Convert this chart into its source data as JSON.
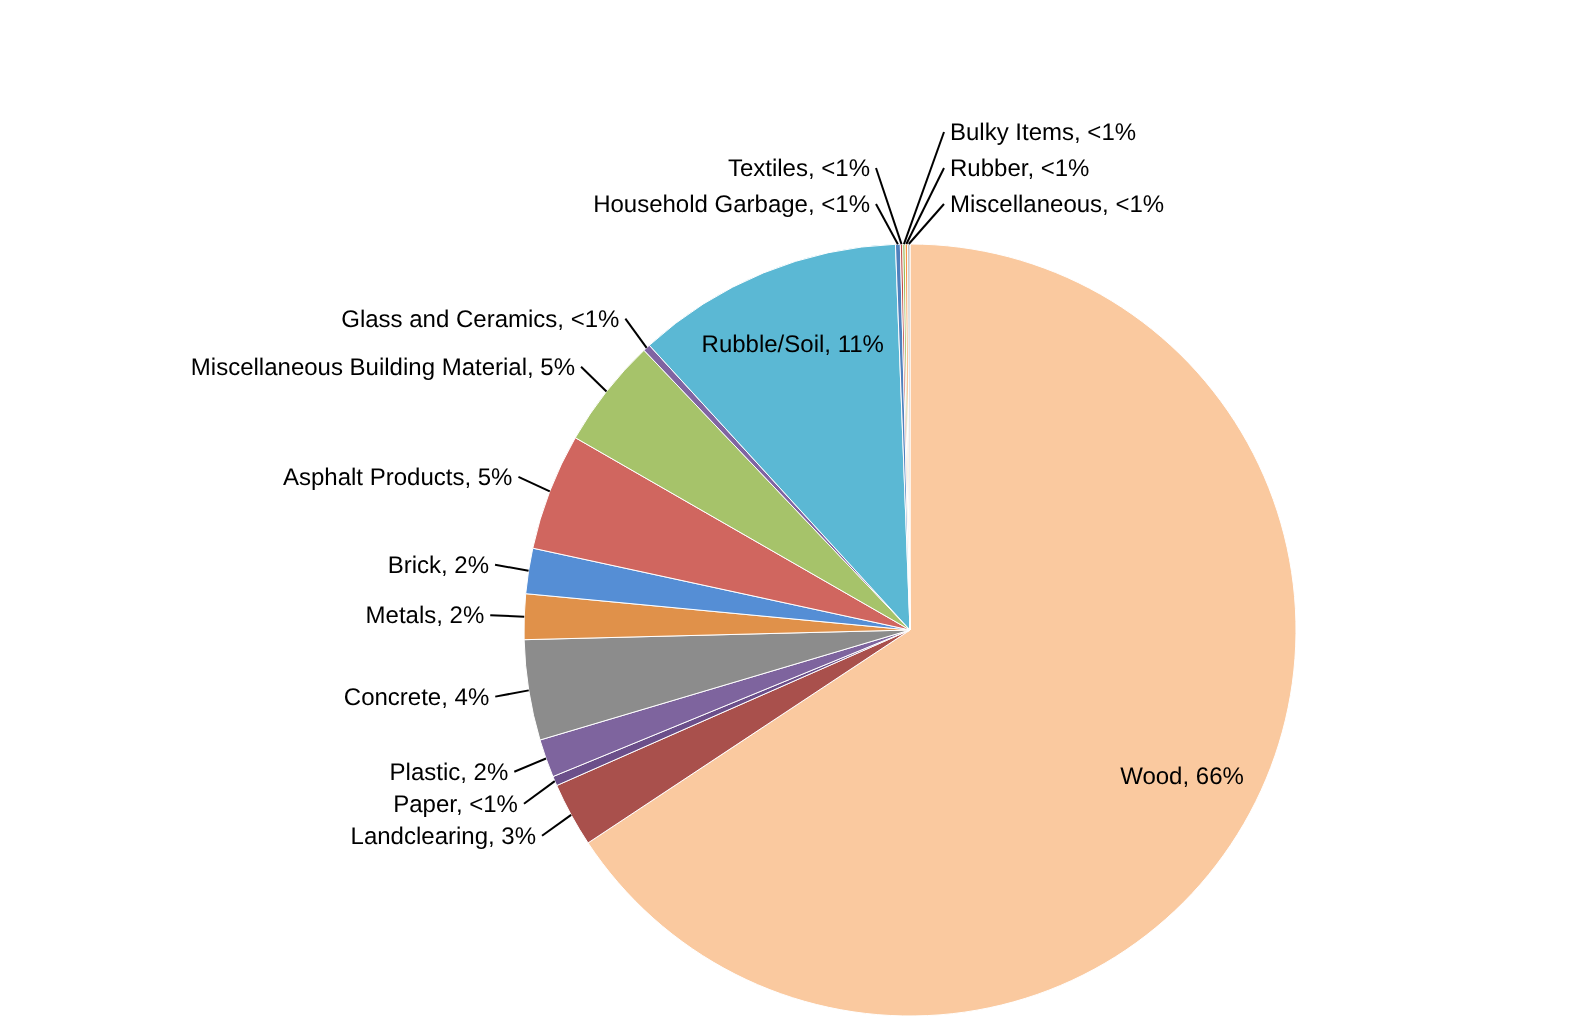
{
  "chart_data": {
    "type": "pie",
    "categories": [
      "Wood",
      "Landclearing",
      "Paper",
      "Plastic",
      "Concrete",
      "Metals",
      "Brick",
      "Asphalt Products",
      "Miscellaneous Building Material",
      "Glass and Ceramics",
      "Rubble/Soil",
      "Household Garbage",
      "Textiles",
      "Bulky Items",
      "Rubber",
      "Miscellaneous"
    ],
    "values": [
      65.7,
      2.7,
      0.4,
      1.6,
      4.2,
      1.9,
      1.9,
      4.9,
      4.6,
      0.3,
      11.2,
      0.2,
      0.1,
      0.1,
      0.1,
      0.1
    ],
    "colors": [
      "#fac99f",
      "#a9504c",
      "#6b4f8a",
      "#7e649e",
      "#8c8c8c",
      "#e0914a",
      "#558ed5",
      "#d0665f",
      "#a6c36a",
      "#8064a2",
      "#5bb8d4",
      "#4f81bd",
      "#c0504d",
      "#9bbb59",
      "#f79646",
      "#bfbfbf"
    ],
    "value_labels": [
      "66%",
      "3%",
      "<1%",
      "2%",
      "4%",
      "2%",
      "2%",
      "5%",
      "5%",
      "<1%",
      "11%",
      "<1%",
      "<1%",
      "<1%",
      "<1%",
      "<1%"
    ]
  }
}
